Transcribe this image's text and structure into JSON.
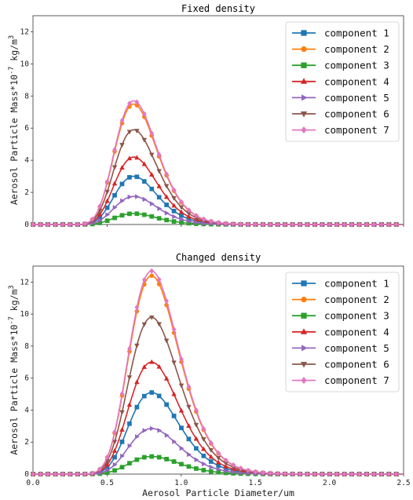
{
  "chart_data": [
    {
      "type": "line",
      "title": "Fixed density",
      "xlabel": "",
      "ylabel": "Aerosol Particle Mass*10",
      "ylabel_exp": "-7",
      "ylabel_unit": "kg/m",
      "ylabel_unit_exp": "3",
      "xlim": [
        0,
        2.5
      ],
      "ylim": [
        0,
        13
      ],
      "xticks": [
        0.0,
        0.5,
        1.0,
        1.5,
        2.0,
        2.5
      ],
      "xtick_labels": [
        "",
        "",
        "",
        "",
        "",
        ""
      ],
      "yticks": [
        0,
        2,
        4,
        6,
        8,
        10,
        12
      ],
      "ytick_labels": [
        "0",
        "2",
        "4",
        "6",
        "8",
        "10",
        "12"
      ],
      "grid": false,
      "legend_position": "top-right",
      "curve": {
        "mu": 0.68,
        "sigma": 0.21
      },
      "series": [
        {
          "name": "component 1",
          "color": "#1f77b4",
          "marker": "square",
          "peak": 3.0
        },
        {
          "name": "component 2",
          "color": "#ff7f0e",
          "marker": "circle",
          "peak": 7.5
        },
        {
          "name": "component 3",
          "color": "#2ca02c",
          "marker": "square",
          "peak": 0.68
        },
        {
          "name": "component 4",
          "color": "#d62728",
          "marker": "triangle-up",
          "peak": 4.2
        },
        {
          "name": "component 5",
          "color": "#9467bd",
          "marker": "triangle-right",
          "peak": 1.75
        },
        {
          "name": "component 6",
          "color": "#8c564b",
          "marker": "triangle-down",
          "peak": 5.9
        },
        {
          "name": "component 7",
          "color": "#e377c2",
          "marker": "diamond",
          "peak": 7.7
        }
      ]
    },
    {
      "type": "line",
      "title": "Changed density",
      "xlabel": "Aerosol Particle Diameter/um",
      "ylabel": "Aerosol Particle Mass*10",
      "ylabel_exp": "-7",
      "ylabel_unit": "kg/m",
      "ylabel_unit_exp": "3",
      "xlim": [
        0,
        2.5
      ],
      "ylim": [
        0,
        13
      ],
      "xticks": [
        0.0,
        0.5,
        1.0,
        1.5,
        2.0,
        2.5
      ],
      "xtick_labels": [
        "0.0",
        "0.5",
        "1.0",
        "1.5",
        "2.0",
        "2.5"
      ],
      "yticks": [
        0,
        2,
        4,
        6,
        8,
        10,
        12
      ],
      "ytick_labels": [
        "0",
        "2",
        "4",
        "6",
        "8",
        "10",
        "12"
      ],
      "grid": false,
      "legend_position": "top-right",
      "curve": {
        "mu": 0.8,
        "sigma": 0.21
      },
      "series": [
        {
          "name": "component 1",
          "color": "#1f77b4",
          "marker": "square",
          "peak": 5.1
        },
        {
          "name": "component 2",
          "color": "#ff7f0e",
          "marker": "circle",
          "peak": 12.4
        },
        {
          "name": "component 3",
          "color": "#2ca02c",
          "marker": "square",
          "peak": 1.1
        },
        {
          "name": "component 4",
          "color": "#d62728",
          "marker": "triangle-up",
          "peak": 7.0
        },
        {
          "name": "component 5",
          "color": "#9467bd",
          "marker": "triangle-right",
          "peak": 2.85
        },
        {
          "name": "component 6",
          "color": "#8c564b",
          "marker": "triangle-down",
          "peak": 9.8
        },
        {
          "name": "component 7",
          "color": "#e377c2",
          "marker": "diamond",
          "peak": 12.7
        }
      ]
    }
  ]
}
